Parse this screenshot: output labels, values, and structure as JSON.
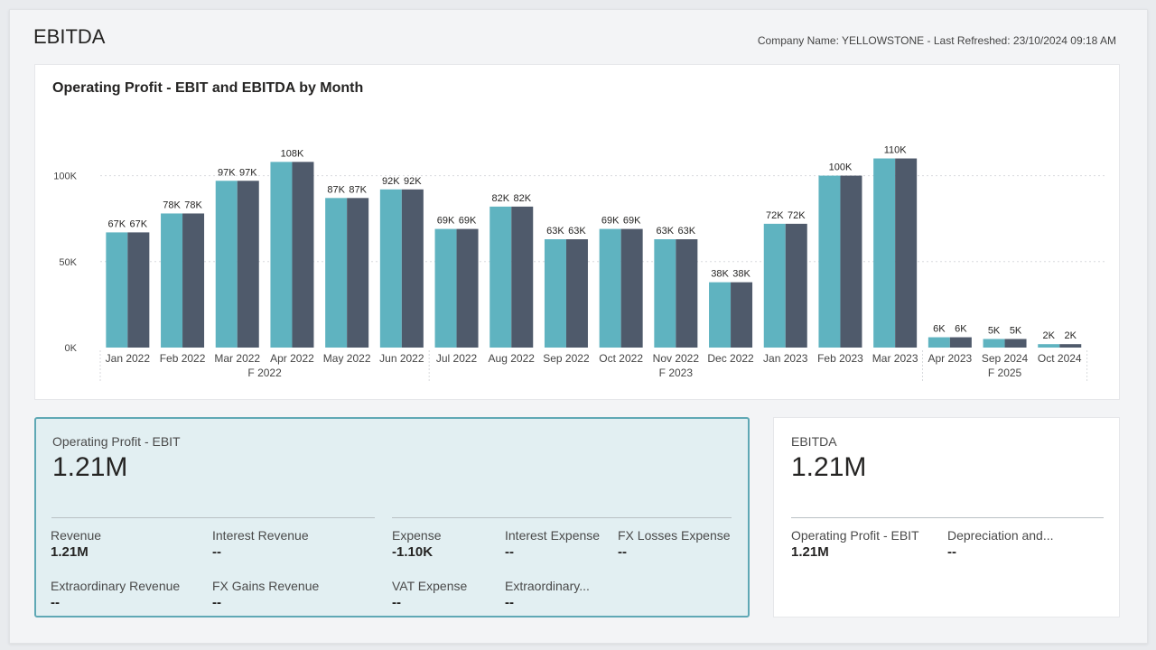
{
  "page": {
    "title": "EBITDA",
    "meta": "Company Name: YELLOWSTONE - Last Refreshed: 23/10/2024 09:18 AM"
  },
  "colors": {
    "ebit": "#5fb3c0",
    "ebitda": "#4f5a6b",
    "gridline": "#d8dadd",
    "axis_text": "#444444"
  },
  "chart_data": {
    "type": "bar",
    "title": "Operating Profit - EBIT and EBITDA by Month",
    "categories": [
      "Jan 2022",
      "Feb 2022",
      "Mar 2022",
      "Apr 2022",
      "May 2022",
      "Jun 2022",
      "Jul 2022",
      "Aug 2022",
      "Sep 2022",
      "Oct 2022",
      "Nov 2022",
      "Dec 2022",
      "Jan 2023",
      "Feb 2023",
      "Mar 2023",
      "Apr 2023",
      "Sep 2024",
      "Oct 2024"
    ],
    "series": [
      {
        "name": "Operating Profit - EBIT",
        "values": [
          67,
          78,
          97,
          108,
          87,
          92,
          69,
          82,
          63,
          69,
          63,
          38,
          72,
          100,
          110,
          6,
          5,
          2
        ]
      },
      {
        "name": "EBITDA",
        "values": [
          67,
          78,
          97,
          108,
          87,
          92,
          69,
          82,
          63,
          69,
          63,
          38,
          72,
          100,
          110,
          6,
          5,
          2
        ]
      }
    ],
    "value_unit": "K",
    "ylim": [
      0,
      115
    ],
    "yticks": [
      "0K",
      "50K",
      "100K"
    ],
    "ytick_values": [
      0,
      50,
      100
    ],
    "groups": [
      {
        "label": "F 2022",
        "start": 0,
        "end": 5
      },
      {
        "label": "F 2023",
        "start": 6,
        "end": 14
      },
      {
        "label": "F 2025",
        "start": 15,
        "end": 17
      }
    ],
    "grid": true
  },
  "ebit_card": {
    "label": "Operating Profit - EBIT",
    "value": "1.21M",
    "items": [
      {
        "label": "Revenue",
        "value": "1.21M"
      },
      {
        "label": "Interest Revenue",
        "value": "--"
      },
      {
        "label": "Extraordinary Revenue",
        "value": "--"
      },
      {
        "label": "FX Gains Revenue",
        "value": "--"
      },
      {
        "label": "Expense",
        "value": "-1.10K"
      },
      {
        "label": "Interest Expense",
        "value": "--"
      },
      {
        "label": "FX Losses Expense",
        "value": "--"
      },
      {
        "label": "VAT Expense",
        "value": "--"
      },
      {
        "label": "Extraordinary...",
        "value": "--"
      }
    ]
  },
  "ebitda_card": {
    "label": "EBITDA",
    "value": "1.21M",
    "items": [
      {
        "label": "Operating Profit - EBIT",
        "value": "1.21M"
      },
      {
        "label": "Depreciation and...",
        "value": "--"
      }
    ]
  }
}
